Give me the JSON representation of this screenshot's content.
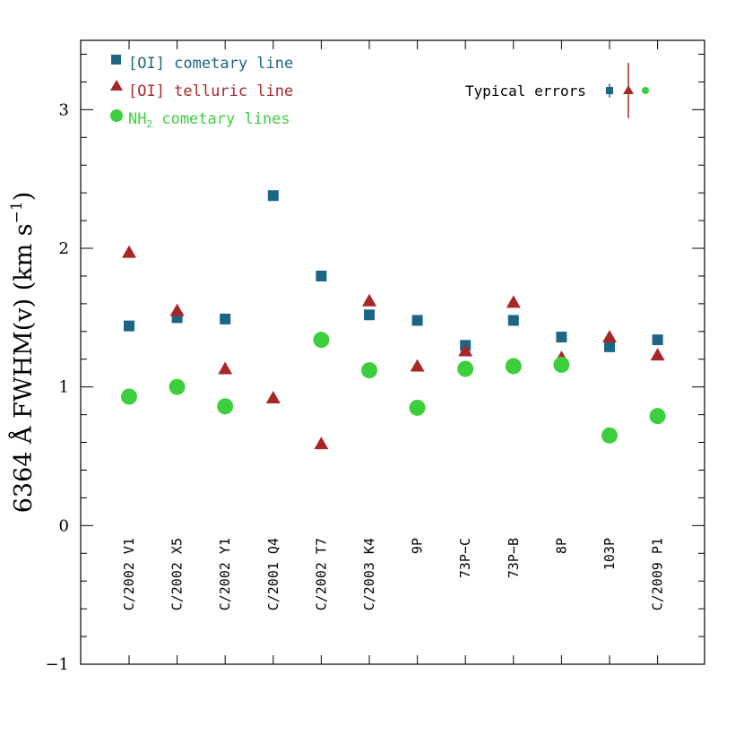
{
  "chart_data": {
    "type": "scatter",
    "ylabel": "6364 Å FWHM(v) (km s",
    "ylabel_sup": "−1",
    "ylabel_close": ")",
    "ylim": [
      -1,
      3.5
    ],
    "yticks": [
      -1,
      0,
      1,
      2,
      3
    ],
    "ytick_labels": [
      "−1",
      "0",
      "1",
      "2",
      "3"
    ],
    "categories": [
      "C/2002 V1",
      "C/2002 X5",
      "C/2002 Y1",
      "C/2001 Q4",
      "C/2002 T7",
      "C/2003 K4",
      "9P",
      "73P−C",
      "73P−B",
      "8P",
      "103P",
      "C/2009 P1"
    ],
    "grid": false,
    "legend_position": "top-left",
    "series": [
      {
        "name": "[OI] cometary line",
        "marker": "square",
        "color": "#1c6585",
        "values": [
          1.44,
          1.5,
          1.49,
          2.38,
          1.8,
          1.52,
          1.48,
          1.3,
          1.48,
          1.36,
          1.29,
          1.34
        ]
      },
      {
        "name": "[OI] telluric line",
        "marker": "triangle",
        "color": "#a8262a",
        "values": [
          1.97,
          1.55,
          1.13,
          0.92,
          0.59,
          1.62,
          1.15,
          1.26,
          1.61,
          1.21,
          1.36,
          1.23
        ]
      },
      {
        "name": "NH2 cometary lines",
        "name_main": "NH",
        "name_sub": "2",
        "name_rest": " cometary lines",
        "marker": "circle",
        "color": "#3ccf3c",
        "values": [
          0.93,
          1.0,
          0.86,
          null,
          1.34,
          1.12,
          0.85,
          1.13,
          1.15,
          1.16,
          0.65,
          0.79
        ]
      }
    ],
    "typical_errors": {
      "label": "Typical errors",
      "square": 0.05,
      "triangle": 0.2,
      "circle": 0.02
    }
  }
}
